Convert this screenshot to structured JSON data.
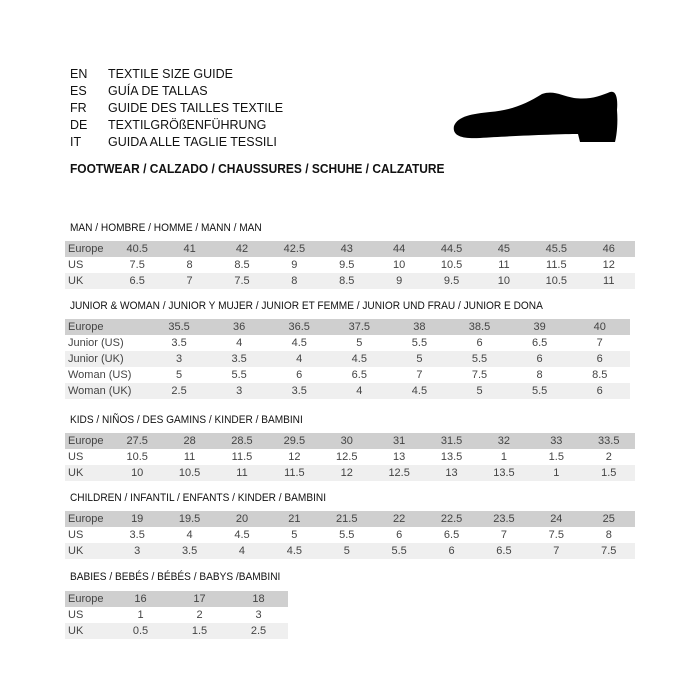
{
  "header": {
    "languages": [
      {
        "code": "EN",
        "text": "TEXTILE SIZE GUIDE"
      },
      {
        "code": "ES",
        "text": "GUÍA DE TALLAS"
      },
      {
        "code": "FR",
        "text": "GUIDE DES TAILLES TEXTILE"
      },
      {
        "code": "DE",
        "text": "TEXTILGRÖßENFÜHRUNG"
      },
      {
        "code": "IT",
        "text": "GUIDA ALLE TAGLIE TESSILI"
      }
    ],
    "footwear": "FOOTWEAR / CALZADO / CHAUSSURES / SCHUHE / CALZATURE",
    "icon": "shoe-silhouette-icon"
  },
  "sections": [
    {
      "title": "MAN / HOMBRE / HOMME / MANN / MAN",
      "rows": [
        {
          "label": "Europe",
          "values": [
            "40.5",
            "41",
            "42",
            "42.5",
            "43",
            "44",
            "44.5",
            "45",
            "45.5",
            "46"
          ]
        },
        {
          "label": "US",
          "values": [
            "7.5",
            "8",
            "8.5",
            "9",
            "9.5",
            "10",
            "10.5",
            "11",
            "11.5",
            "12"
          ]
        },
        {
          "label": "UK",
          "values": [
            "6.5",
            "7",
            "7.5",
            "8",
            "8.5",
            "9",
            "9.5",
            "10",
            "10.5",
            "11"
          ]
        }
      ]
    },
    {
      "title": "JUNIOR & WOMAN / JUNIOR Y MUJER / JUNIOR ET FEMME / JUNIOR UND FRAU / JUNIOR E DONA",
      "rows": [
        {
          "label": "Europe",
          "values": [
            "35.5",
            "36",
            "36.5",
            "37.5",
            "38",
            "38.5",
            "39",
            "40"
          ]
        },
        {
          "label": "Junior (US)",
          "values": [
            "3.5",
            "4",
            "4.5",
            "5",
            "5.5",
            "6",
            "6.5",
            "7"
          ]
        },
        {
          "label": "Junior (UK)",
          "values": [
            "3",
            "3.5",
            "4",
            "4.5",
            "5",
            "5.5",
            "6",
            "6"
          ]
        },
        {
          "label": "Woman (US)",
          "values": [
            "5",
            "5.5",
            "6",
            "6.5",
            "7",
            "7.5",
            "8",
            "8.5"
          ]
        },
        {
          "label": "Woman (UK)",
          "values": [
            "2.5",
            "3",
            "3.5",
            "4",
            "4.5",
            "5",
            "5.5",
            "6"
          ]
        }
      ]
    },
    {
      "title": "KIDS / NIÑOS / DES GAMINS / KINDER / BAMBINI",
      "rows": [
        {
          "label": "Europe",
          "values": [
            "27.5",
            "28",
            "28.5",
            "29.5",
            "30",
            "31",
            "31.5",
            "32",
            "33",
            "33.5"
          ]
        },
        {
          "label": "US",
          "values": [
            "10.5",
            "11",
            "11.5",
            "12",
            "12.5",
            "13",
            "13.5",
            "1",
            "1.5",
            "2"
          ]
        },
        {
          "label": "UK",
          "values": [
            "10",
            "10.5",
            "11",
            "11.5",
            "12",
            "12.5",
            "13",
            "13.5",
            "1",
            "1.5"
          ]
        }
      ]
    },
    {
      "title": "CHILDREN / INFANTIL / ENFANTS / KINDER / BAMBINI",
      "rows": [
        {
          "label": "Europe",
          "values": [
            "19",
            "19.5",
            "20",
            "21",
            "21.5",
            "22",
            "22.5",
            "23.5",
            "24",
            "25"
          ]
        },
        {
          "label": "US",
          "values": [
            "3.5",
            "4",
            "4.5",
            "5",
            "5.5",
            "6",
            "6.5",
            "7",
            "7.5",
            "8"
          ]
        },
        {
          "label": "UK",
          "values": [
            "3",
            "3.5",
            "4",
            "4.5",
            "5",
            "5.5",
            "6",
            "6.5",
            "7",
            "7.5"
          ]
        }
      ]
    },
    {
      "title": "BABIES  / BEBÉS / BÉBÉS / BABYS /BAMBINI",
      "rows": [
        {
          "label": "Europe",
          "values": [
            "16",
            "17",
            "18"
          ]
        },
        {
          "label": "US",
          "values": [
            "1",
            "2",
            "3"
          ]
        },
        {
          "label": "UK",
          "values": [
            "0.5",
            "1.5",
            "2.5"
          ]
        }
      ]
    }
  ]
}
